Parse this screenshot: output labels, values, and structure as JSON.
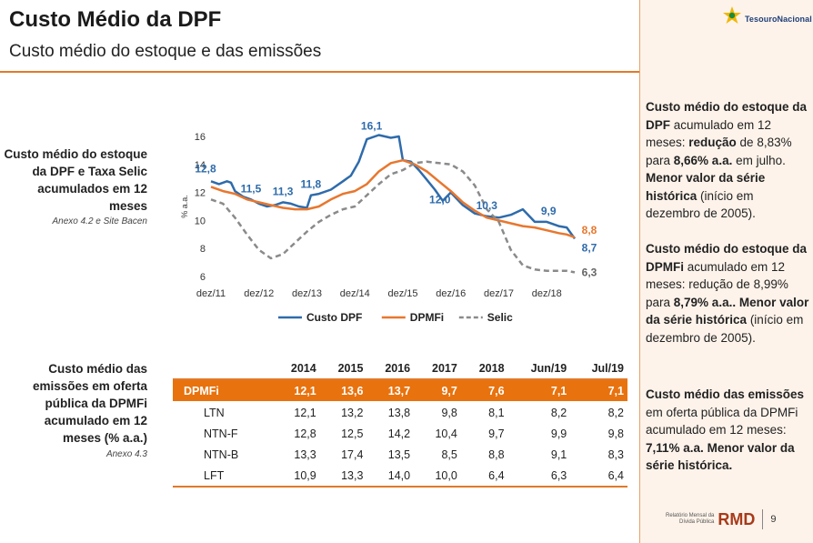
{
  "header": {
    "title": "Custo Médio da DPF",
    "subtitle": "Custo médio do estoque e das emissões"
  },
  "logo": {
    "text": "TesouroNacional"
  },
  "left": {
    "chart_label": "Custo médio do estoque da DPF e Taxa Selic acumulados em 12 meses",
    "chart_note": "Anexo 4.2 e Site Bacen",
    "table_label": "Custo médio das emissões em oferta pública da DPMFi acumulado em 12 meses (% a.a.)",
    "table_note": "Anexo 4.3"
  },
  "side": {
    "p1": [
      {
        "t": "Custo médio do estoque da DPF",
        "b": true
      },
      {
        "t": " acumulado em 12 meses: ",
        "b": false
      },
      {
        "t": "redução",
        "b": true
      },
      {
        "t": " de 8,83% para ",
        "b": false
      },
      {
        "t": "8,66% a.a.",
        "b": true
      },
      {
        "t": " em julho. ",
        "b": false
      },
      {
        "t": "Menor valor da série histórica",
        "b": true
      },
      {
        "t": " (início em dezembro de 2005).",
        "b": false
      }
    ],
    "p2": [
      {
        "t": "Custo médio do estoque da DPMFi",
        "b": true
      },
      {
        "t": " acumulado em 12 meses: redução de 8,99% para ",
        "b": false
      },
      {
        "t": "8,79% a.a..",
        "b": true
      },
      {
        "t": " ",
        "b": false
      },
      {
        "t": "Menor valor da série histórica",
        "b": true
      },
      {
        "t": " (início em dezembro de 2005).",
        "b": false
      }
    ],
    "p3": [
      {
        "t": "Custo médio das emissões",
        "b": true
      },
      {
        "t": " em oferta pública da DPMFi acumulado em 12 meses: ",
        "b": false
      },
      {
        "t": "7,11% a.a.",
        "b": true
      },
      {
        "t": " ",
        "b": false
      },
      {
        "t": "Menor valor da série histórica.",
        "b": true
      }
    ]
  },
  "footer": {
    "small1": "Relatório Mensal da",
    "small2": "Dívida Pública",
    "rmd": "RMD",
    "page": "9"
  },
  "table": {
    "columns": [
      "",
      "2014",
      "2015",
      "2016",
      "2017",
      "2018",
      "Jun/19",
      "Jul/19"
    ],
    "rows": [
      {
        "name": "DPMFi",
        "values": [
          "12,1",
          "13,6",
          "13,7",
          "9,7",
          "7,6",
          "7,1",
          "7,1"
        ],
        "highlight": true
      },
      {
        "name": "LTN",
        "values": [
          "12,1",
          "13,2",
          "13,8",
          "9,8",
          "8,1",
          "8,2",
          "8,2"
        ],
        "highlight": false
      },
      {
        "name": "NTN-F",
        "values": [
          "12,8",
          "12,5",
          "14,2",
          "10,4",
          "9,7",
          "9,9",
          "9,8"
        ],
        "highlight": false
      },
      {
        "name": "NTN-B",
        "values": [
          "13,3",
          "17,4",
          "13,5",
          "8,5",
          "8,8",
          "9,1",
          "8,3"
        ],
        "highlight": false
      },
      {
        "name": "LFT",
        "values": [
          "10,9",
          "13,3",
          "14,0",
          "10,0",
          "6,4",
          "6,3",
          "6,4"
        ],
        "highlight": false
      }
    ]
  },
  "chart_data": {
    "type": "line",
    "ylabel": "% a.a.",
    "ylim": [
      6,
      16
    ],
    "yticks": [
      "6",
      "8",
      "10",
      "12",
      "14",
      "16"
    ],
    "xlim": [
      "2011-12",
      "2019-07"
    ],
    "xticks": [
      "dez/11",
      "dez/12",
      "dez/13",
      "dez/14",
      "dez/15",
      "dez/16",
      "dez/17",
      "dez/18"
    ],
    "colors": {
      "Custo DPF": "#2e6bab",
      "DPMFi": "#e8772e",
      "Selic": "#8a8a8a"
    },
    "series": [
      {
        "name": "Custo DPF",
        "points": [
          [
            "2011-12",
            12.8
          ],
          [
            "2012-02",
            12.6
          ],
          [
            "2012-04",
            12.8
          ],
          [
            "2012-05",
            12.7
          ],
          [
            "2012-06",
            12.1
          ],
          [
            "2012-08",
            11.7
          ],
          [
            "2012-10",
            11.5
          ],
          [
            "2012-12",
            11.2
          ],
          [
            "2013-02",
            11.0
          ],
          [
            "2013-04",
            11.1
          ],
          [
            "2013-06",
            11.3
          ],
          [
            "2013-08",
            11.2
          ],
          [
            "2013-10",
            11.0
          ],
          [
            "2013-12",
            10.9
          ],
          [
            "2014-01",
            11.8
          ],
          [
            "2014-03",
            11.9
          ],
          [
            "2014-06",
            12.2
          ],
          [
            "2014-09",
            12.8
          ],
          [
            "2014-11",
            13.2
          ],
          [
            "2015-01",
            14.2
          ],
          [
            "2015-03",
            15.8
          ],
          [
            "2015-06",
            16.1
          ],
          [
            "2015-09",
            15.9
          ],
          [
            "2015-11",
            16.0
          ],
          [
            "2015-12",
            14.3
          ],
          [
            "2016-02",
            14.2
          ],
          [
            "2016-04",
            13.6
          ],
          [
            "2016-06",
            12.9
          ],
          [
            "2016-08",
            12.2
          ],
          [
            "2016-10",
            11.4
          ],
          [
            "2016-12",
            12.0
          ],
          [
            "2017-03",
            11.1
          ],
          [
            "2017-06",
            10.5
          ],
          [
            "2017-09",
            10.3
          ],
          [
            "2017-12",
            10.2
          ],
          [
            "2018-03",
            10.4
          ],
          [
            "2018-06",
            10.8
          ],
          [
            "2018-09",
            9.9
          ],
          [
            "2018-12",
            9.9
          ],
          [
            "2019-03",
            9.6
          ],
          [
            "2019-05",
            9.5
          ],
          [
            "2019-07",
            8.7
          ]
        ]
      },
      {
        "name": "DPMFi",
        "points": [
          [
            "2011-12",
            12.4
          ],
          [
            "2012-03",
            12.1
          ],
          [
            "2012-06",
            11.9
          ],
          [
            "2012-09",
            11.5
          ],
          [
            "2012-12",
            11.3
          ],
          [
            "2013-03",
            11.1
          ],
          [
            "2013-06",
            10.9
          ],
          [
            "2013-09",
            10.8
          ],
          [
            "2013-12",
            10.8
          ],
          [
            "2014-03",
            11.0
          ],
          [
            "2014-06",
            11.5
          ],
          [
            "2014-09",
            11.9
          ],
          [
            "2014-12",
            12.1
          ],
          [
            "2015-03",
            12.6
          ],
          [
            "2015-06",
            13.5
          ],
          [
            "2015-09",
            14.1
          ],
          [
            "2015-12",
            14.3
          ],
          [
            "2016-03",
            14.0
          ],
          [
            "2016-06",
            13.5
          ],
          [
            "2016-09",
            12.8
          ],
          [
            "2016-12",
            12.1
          ],
          [
            "2017-03",
            11.3
          ],
          [
            "2017-06",
            10.7
          ],
          [
            "2017-09",
            10.2
          ],
          [
            "2017-12",
            10.0
          ],
          [
            "2018-03",
            9.8
          ],
          [
            "2018-06",
            9.6
          ],
          [
            "2018-09",
            9.5
          ],
          [
            "2018-12",
            9.3
          ],
          [
            "2019-03",
            9.1
          ],
          [
            "2019-05",
            9.0
          ],
          [
            "2019-07",
            8.8
          ]
        ]
      },
      {
        "name": "Selic",
        "points": [
          [
            "2011-12",
            11.5
          ],
          [
            "2012-03",
            11.2
          ],
          [
            "2012-06",
            10.2
          ],
          [
            "2012-09",
            9.0
          ],
          [
            "2012-12",
            7.9
          ],
          [
            "2013-03",
            7.3
          ],
          [
            "2013-06",
            7.6
          ],
          [
            "2013-09",
            8.4
          ],
          [
            "2013-12",
            9.2
          ],
          [
            "2014-03",
            9.9
          ],
          [
            "2014-06",
            10.4
          ],
          [
            "2014-09",
            10.8
          ],
          [
            "2014-12",
            11.0
          ],
          [
            "2015-03",
            11.8
          ],
          [
            "2015-06",
            12.6
          ],
          [
            "2015-09",
            13.3
          ],
          [
            "2015-12",
            13.6
          ],
          [
            "2016-03",
            14.1
          ],
          [
            "2016-06",
            14.2
          ],
          [
            "2016-09",
            14.1
          ],
          [
            "2016-12",
            14.0
          ],
          [
            "2017-03",
            13.5
          ],
          [
            "2017-06",
            12.5
          ],
          [
            "2017-09",
            10.8
          ],
          [
            "2017-12",
            9.9
          ],
          [
            "2018-03",
            7.9
          ],
          [
            "2018-06",
            6.8
          ],
          [
            "2018-09",
            6.5
          ],
          [
            "2018-12",
            6.4
          ],
          [
            "2019-03",
            6.4
          ],
          [
            "2019-05",
            6.4
          ],
          [
            "2019-07",
            6.3
          ]
        ]
      }
    ],
    "data_labels": [
      {
        "text": "12,8",
        "series": "Custo DPF",
        "x": "2011-12",
        "y": 12.8
      },
      {
        "text": "11,5",
        "series": "Custo DPF",
        "x": "2012-10",
        "y": 11.5
      },
      {
        "text": "11,3",
        "series": "Custo DPF",
        "x": "2013-06",
        "y": 11.3
      },
      {
        "text": "11,8",
        "series": "Custo DPF",
        "x": "2014-01",
        "y": 11.8
      },
      {
        "text": "16,1",
        "series": "Custo DPF",
        "x": "2015-06",
        "y": 16.1
      },
      {
        "text": "12,0",
        "series": "Custo DPF",
        "x": "2016-12",
        "y": 12.0
      },
      {
        "text": "10,3",
        "series": "Custo DPF",
        "x": "2017-09",
        "y": 10.3
      },
      {
        "text": "9,9",
        "series": "Custo DPF",
        "x": "2018-12",
        "y": 9.9
      },
      {
        "text": "8,8",
        "series": "DPMFi",
        "x": "2019-07",
        "y": 8.8
      },
      {
        "text": "8,7",
        "series": "Custo DPF",
        "x": "2019-07",
        "y": 8.7
      },
      {
        "text": "6,3",
        "series": "Selic",
        "x": "2019-07",
        "y": 6.3
      }
    ],
    "legend": [
      "Custo DPF",
      "DPMFi",
      "Selic"
    ],
    "legend_position": "bottom",
    "grid": false
  }
}
